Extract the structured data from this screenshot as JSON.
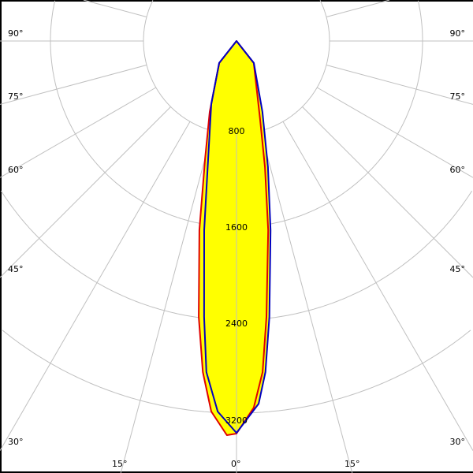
{
  "chart_data": {
    "type": "polar",
    "zero_direction": "down",
    "radial_unit_ticks": [
      800,
      1600,
      2400,
      3200
    ],
    "radial_tick_labels": [
      "800",
      "1600",
      "2400",
      "3200"
    ],
    "angle_tick_labels_left": [
      "90°",
      "75°",
      "60°",
      "45°",
      "30°",
      "15°"
    ],
    "angle_tick_labels_bottom": [
      "15°",
      "0°",
      "15°"
    ],
    "angle_tick_labels_right": [
      "90°",
      "75°",
      "60°",
      "45°",
      "30°"
    ],
    "spoke_step_deg": 15,
    "grid": true,
    "fill_color": "#ffff00",
    "grid_color": "#c0c0c0",
    "series": [
      {
        "color": "#e00000",
        "points": [
          [
            -180,
            0
          ],
          [
            -38,
            241
          ],
          [
            -20.7,
            652
          ],
          [
            -14.9,
            1052
          ],
          [
            -11.1,
            1658
          ],
          [
            -7.8,
            2395
          ],
          [
            -5.8,
            2862
          ],
          [
            -3.9,
            3194
          ],
          [
            -1.4,
            3391
          ],
          [
            0,
            3376
          ],
          [
            2.7,
            3156
          ],
          [
            4.5,
            2856
          ],
          [
            6.2,
            2387
          ],
          [
            9.5,
            1650
          ],
          [
            12.7,
            1112
          ],
          [
            16.7,
            708
          ],
          [
            38,
            241
          ],
          [
            180,
            0
          ]
        ]
      },
      {
        "color": "#0000c0",
        "points": [
          [
            -180,
            0
          ],
          [
            -38.2,
            241
          ],
          [
            -21.8,
            584
          ],
          [
            -13.5,
            1046
          ],
          [
            -9.7,
            1651
          ],
          [
            -6.7,
            2389
          ],
          [
            -5.2,
            2859
          ],
          [
            -2.9,
            3191
          ],
          [
            0,
            3370
          ],
          [
            3.5,
            3125
          ],
          [
            5.0,
            2858
          ],
          [
            6.8,
            2390
          ],
          [
            10.2,
            1653
          ],
          [
            14.0,
            1118
          ],
          [
            20.1,
            650
          ],
          [
            38.2,
            241
          ],
          [
            180,
            0
          ]
        ]
      }
    ]
  }
}
